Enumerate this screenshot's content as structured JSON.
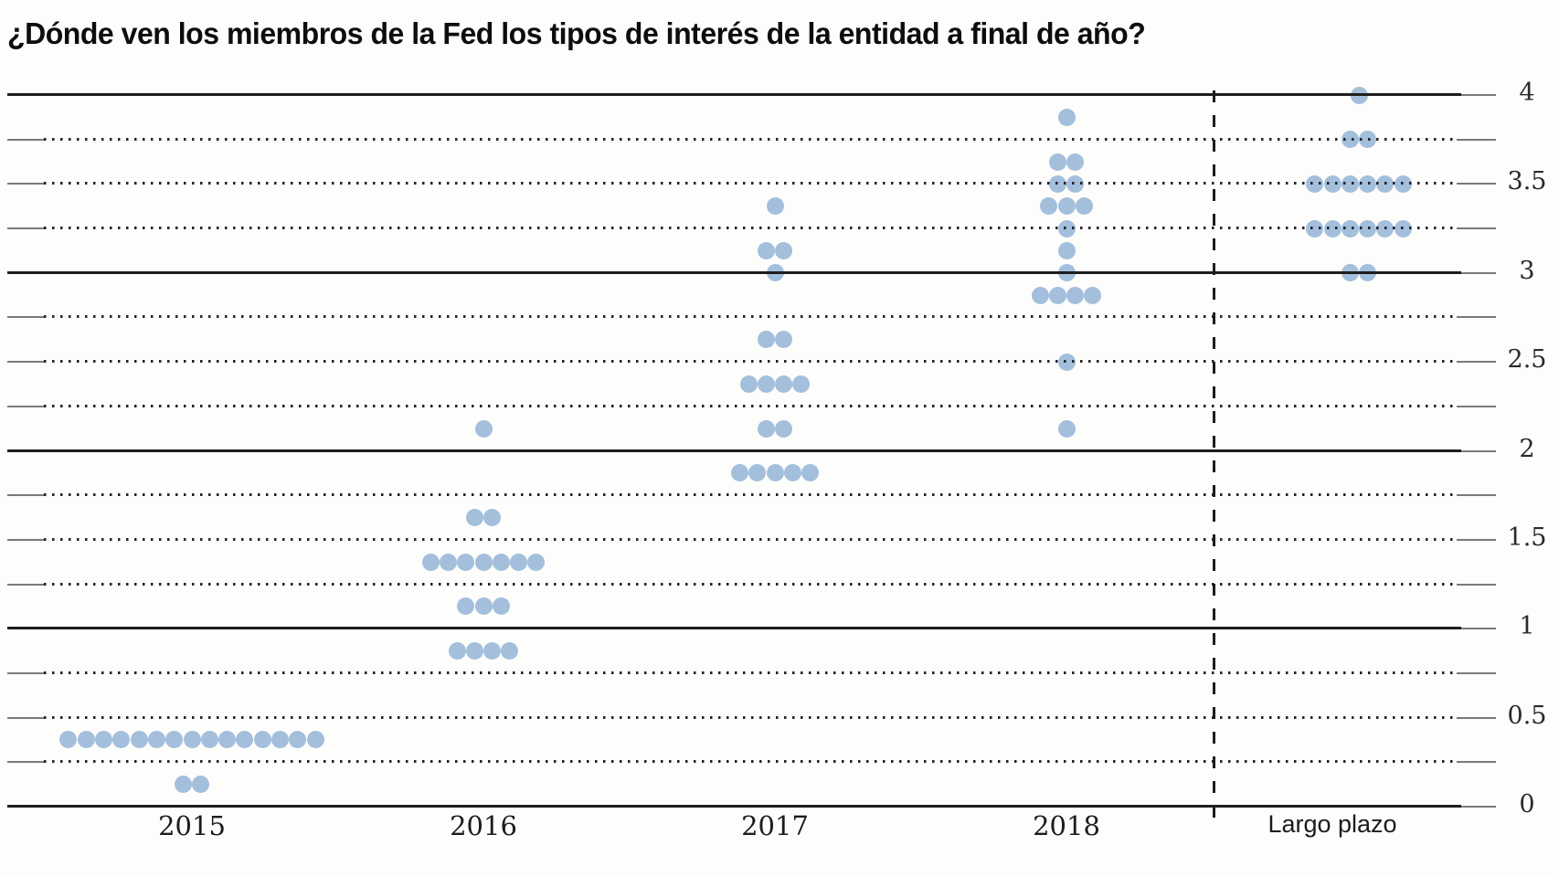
{
  "title": "¿Dónde ven los miembros de la Fed los tipos de interés de la entidad a final de año?",
  "colors": {
    "dot_fill": "#a3bfdc",
    "grid_solid": "#1e1e1e",
    "grid_minor": "#23232b",
    "text": "#1c1c1c"
  },
  "chart_data": {
    "type": "scatter",
    "subtype": "fed-dot-plot",
    "title": "¿Dónde ven los miembros de la Fed los tipos de interés de la entidad a final de año?",
    "xlabel": "",
    "ylabel": "",
    "ylim": [
      0,
      4
    ],
    "y_major_step": 0.5,
    "y_minor_step": 0.25,
    "grid": "horizontal, solid at integers, dotted at quarters",
    "legend": "none",
    "ytick_labels": [
      "0",
      "0.5",
      "1",
      "1.5",
      "2",
      "2.5",
      "3",
      "3.5",
      "4"
    ],
    "categories": [
      "2015",
      "2016",
      "2017",
      "2018",
      "Largo plazo"
    ],
    "separator_after_category": "2018",
    "series": [
      {
        "category": "2015",
        "points": [
          {
            "rate": 0.375,
            "members": 15
          },
          {
            "rate": 0.125,
            "members": 2
          }
        ]
      },
      {
        "category": "2016",
        "points": [
          {
            "rate": 2.125,
            "members": 1
          },
          {
            "rate": 1.625,
            "members": 2
          },
          {
            "rate": 1.375,
            "members": 7
          },
          {
            "rate": 1.125,
            "members": 3
          },
          {
            "rate": 0.875,
            "members": 4
          }
        ]
      },
      {
        "category": "2017",
        "points": [
          {
            "rate": 3.375,
            "members": 1
          },
          {
            "rate": 3.125,
            "members": 2
          },
          {
            "rate": 3.0,
            "members": 1
          },
          {
            "rate": 2.625,
            "members": 2
          },
          {
            "rate": 2.375,
            "members": 4
          },
          {
            "rate": 2.125,
            "members": 2
          },
          {
            "rate": 1.875,
            "members": 5
          }
        ]
      },
      {
        "category": "2018",
        "points": [
          {
            "rate": 3.875,
            "members": 1
          },
          {
            "rate": 3.625,
            "members": 2
          },
          {
            "rate": 3.5,
            "members": 2
          },
          {
            "rate": 3.375,
            "members": 3
          },
          {
            "rate": 3.25,
            "members": 1
          },
          {
            "rate": 3.125,
            "members": 1
          },
          {
            "rate": 3.0,
            "members": 1
          },
          {
            "rate": 2.875,
            "members": 4
          },
          {
            "rate": 2.5,
            "members": 1
          },
          {
            "rate": 2.125,
            "members": 1
          }
        ]
      },
      {
        "category": "Largo plazo",
        "points": [
          {
            "rate": 4.0,
            "members": 1
          },
          {
            "rate": 3.75,
            "members": 2
          },
          {
            "rate": 3.5,
            "members": 6
          },
          {
            "rate": 3.25,
            "members": 6
          },
          {
            "rate": 3.0,
            "members": 2
          }
        ]
      }
    ]
  }
}
